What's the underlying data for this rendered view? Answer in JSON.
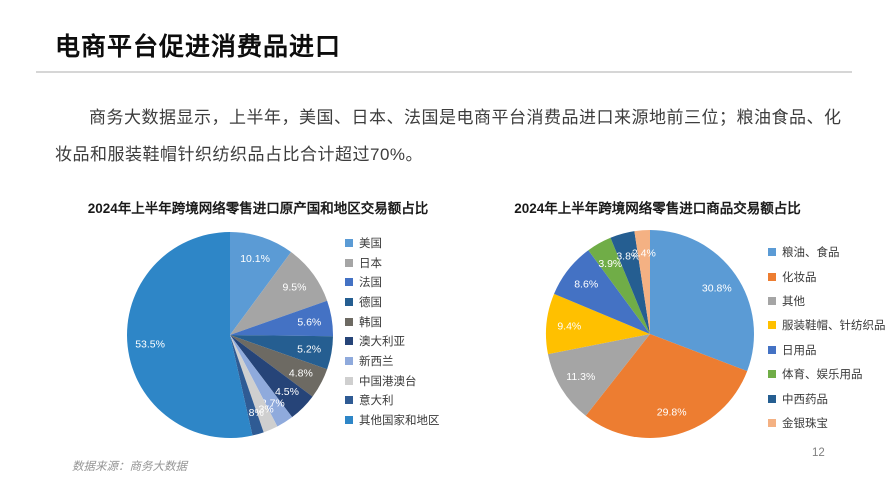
{
  "page": {
    "title": "电商平台促进消费品进口",
    "paragraph": "商务大数据显示，上半年，美国、日本、法国是电商平台消费品进口来源地前三位；粮油食品、化妆品和服装鞋帽针织纺织品占比合计超过70%。",
    "source_note": "数据来源：商务大数据",
    "page_number": "12"
  },
  "chart_data": [
    {
      "type": "pie",
      "title": "2024年上半年跨境网络零售进口原产国和地区交易额占比",
      "legend_position": "right",
      "start_angle": "top",
      "direction": "clockwise",
      "label_format": "percent",
      "slices": [
        {
          "label": "美国",
          "value": 10.1,
          "color": "#5B9BD5"
        },
        {
          "label": "日本",
          "value": 9.5,
          "color": "#A5A5A5"
        },
        {
          "label": "法国",
          "value": 5.6,
          "color": "#4472C4"
        },
        {
          "label": "德国",
          "value": 5.2,
          "color": "#255E91"
        },
        {
          "label": "韩国",
          "value": 4.8,
          "color": "#6D6A63"
        },
        {
          "label": "澳大利亚",
          "value": 4.5,
          "color": "#264478"
        },
        {
          "label": "新西兰",
          "value": 2.7,
          "color": "#8FAADC"
        },
        {
          "label": "中国港澳台",
          "value": 2.3,
          "color": "#CFCFCF"
        },
        {
          "label": "意大利",
          "value": 1.8,
          "color": "#2F5B94"
        },
        {
          "label": "其他国家和地区",
          "value": 53.5,
          "color": "#2E86C7"
        }
      ]
    },
    {
      "type": "pie",
      "title": "2024年上半年跨境网络零售进口商品交易额占比",
      "legend_position": "right",
      "start_angle": "top",
      "direction": "clockwise",
      "label_format": "percent",
      "slices": [
        {
          "label": "粮油、食品",
          "value": 30.8,
          "color": "#5B9BD5"
        },
        {
          "label": "化妆品",
          "value": 29.8,
          "color": "#ED7D31"
        },
        {
          "label": "其他",
          "value": 11.3,
          "color": "#A5A5A5"
        },
        {
          "label": "服装鞋帽、针纺织品",
          "value": 9.4,
          "color": "#FFC000"
        },
        {
          "label": "日用品",
          "value": 8.6,
          "color": "#4472C4"
        },
        {
          "label": "体育、娱乐用品",
          "value": 3.9,
          "color": "#70AD47"
        },
        {
          "label": "中西药品",
          "value": 3.8,
          "color": "#255E91"
        },
        {
          "label": "金银珠宝",
          "value": 2.4,
          "color": "#F4B183"
        }
      ]
    }
  ]
}
